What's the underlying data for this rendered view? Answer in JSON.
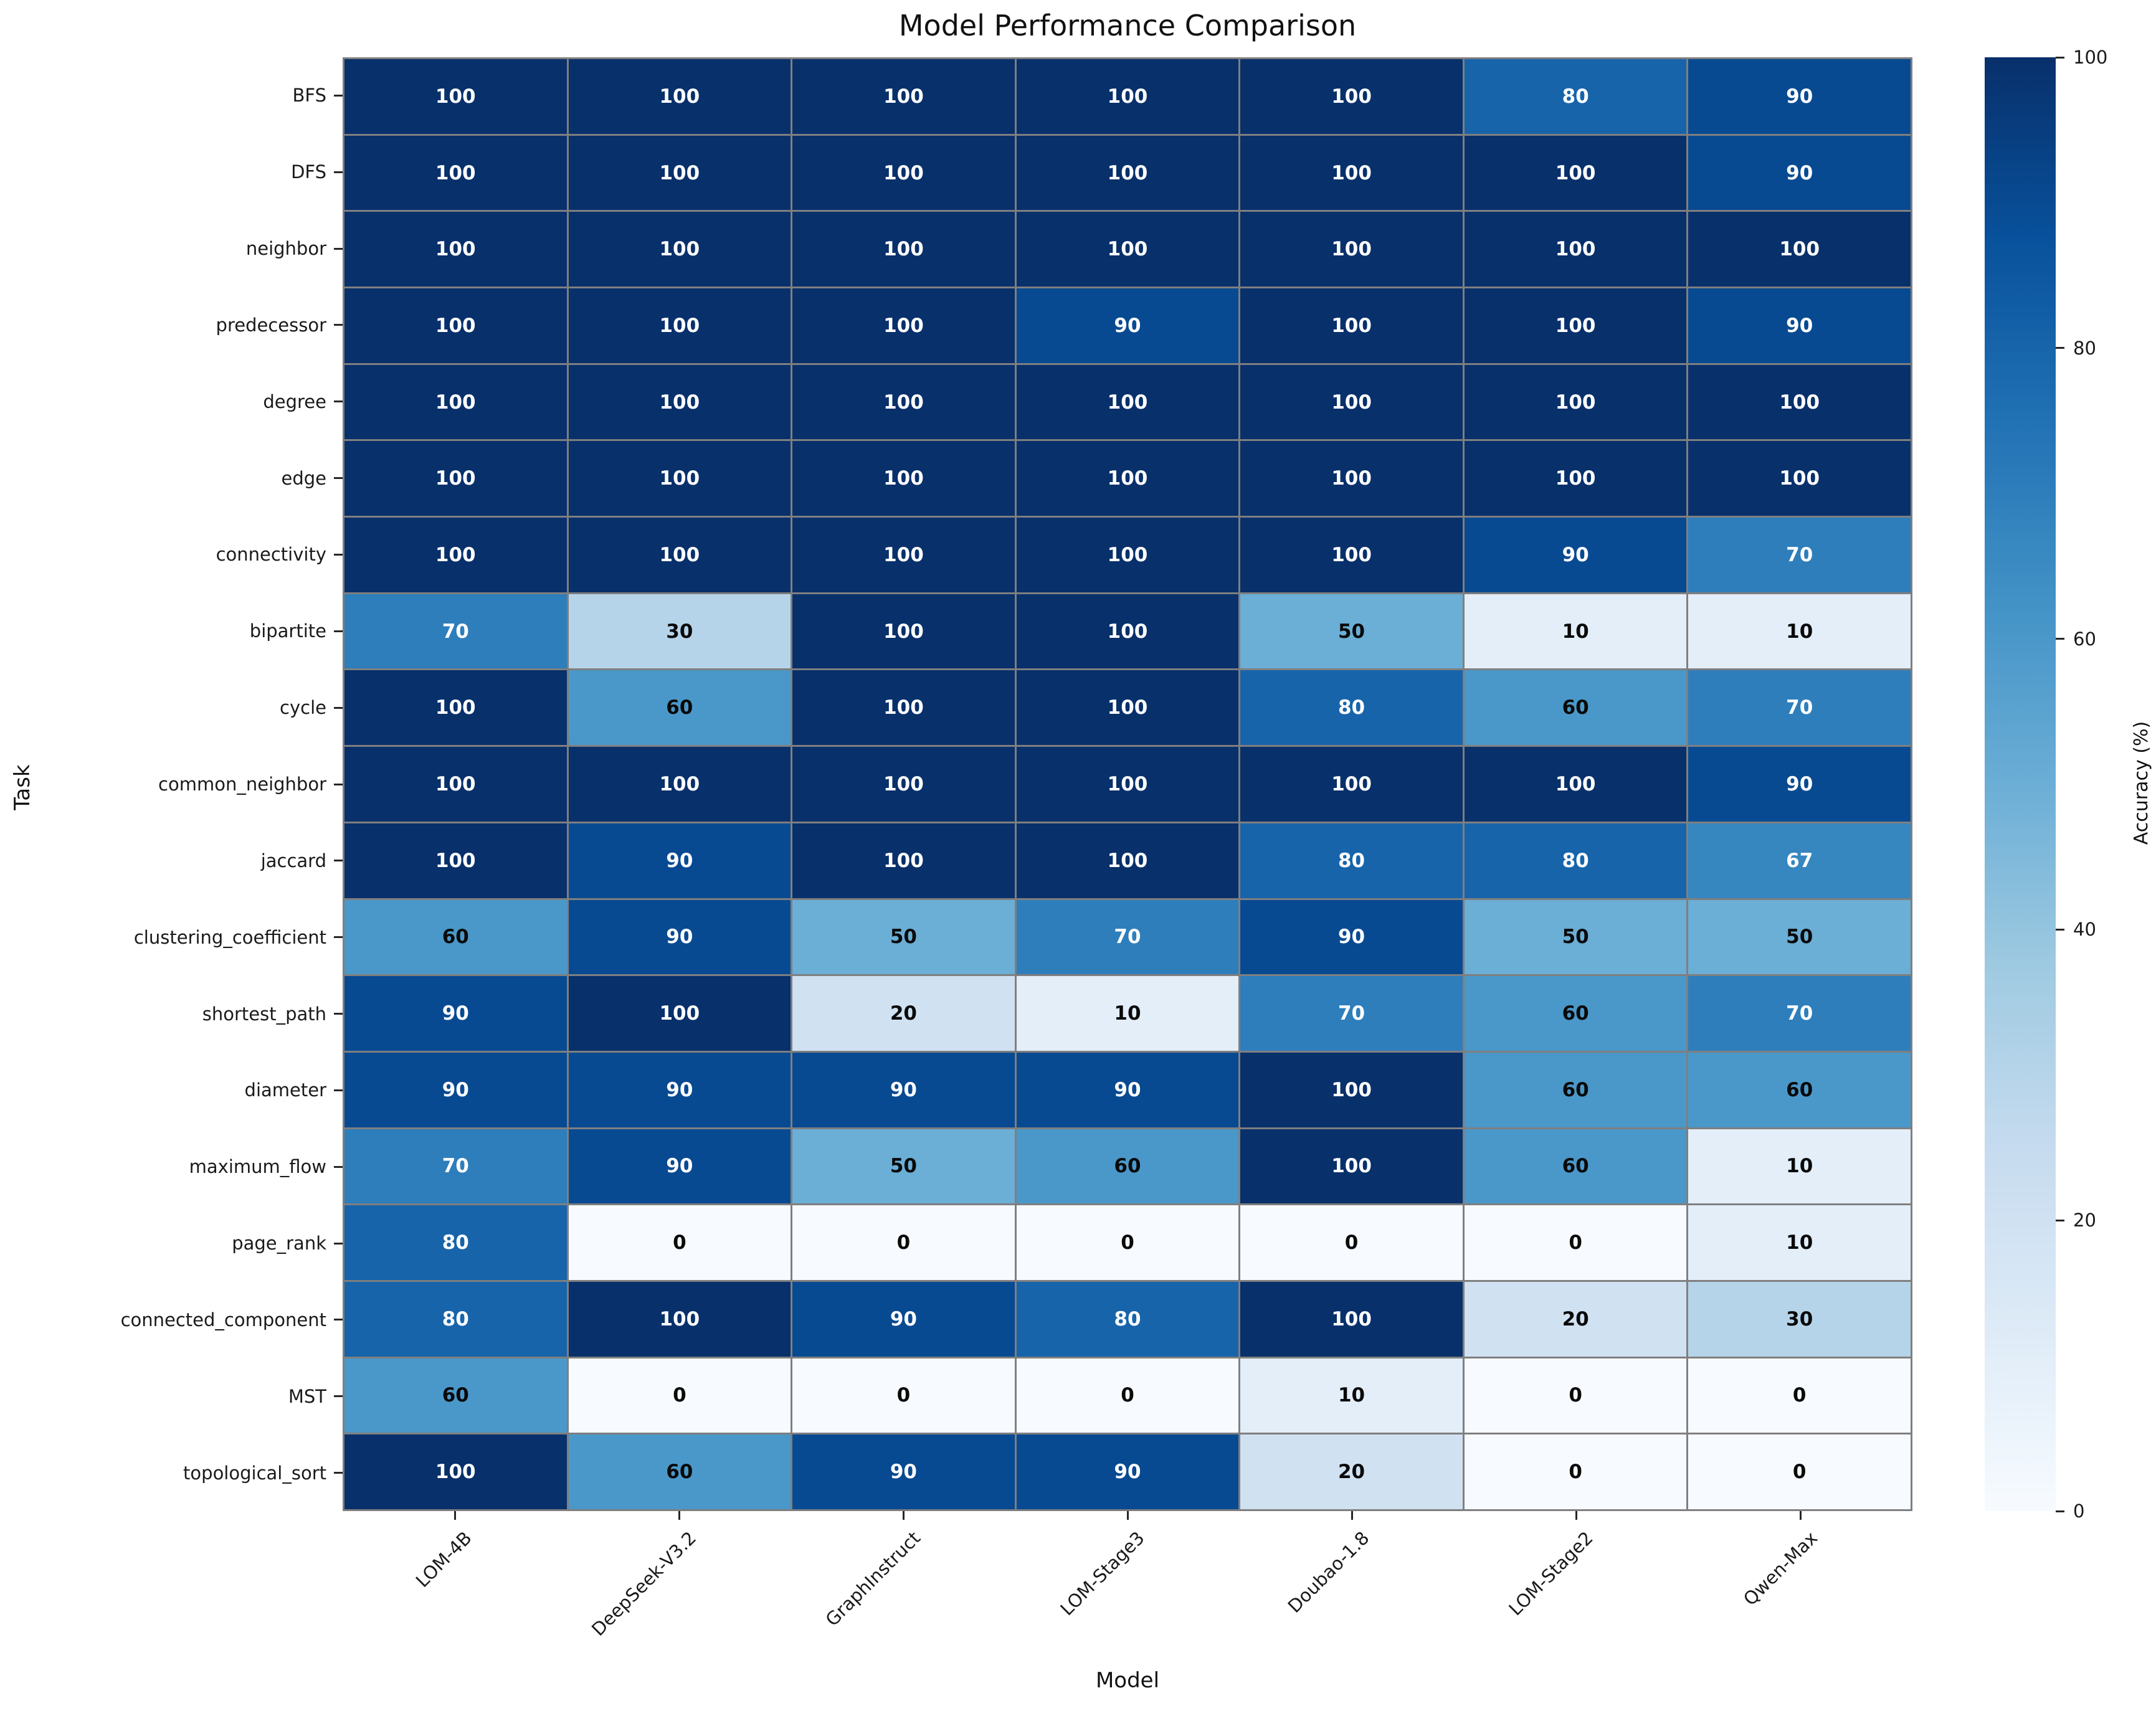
{
  "chart_data": {
    "type": "heatmap",
    "title": "Model Performance Comparison",
    "xlabel": "Model",
    "ylabel": "Task",
    "x_categories": [
      "LOM-4B",
      "DeepSeek-V3.2",
      "GraphInstruct",
      "LOM-Stage3",
      "Doubao-1.8",
      "LOM-Stage2",
      "Qwen-Max"
    ],
    "y_categories": [
      "BFS",
      "DFS",
      "neighbor",
      "predecessor",
      "degree",
      "edge",
      "connectivity",
      "bipartite",
      "cycle",
      "common_neighbor",
      "jaccard",
      "clustering_coefficient",
      "shortest_path",
      "diameter",
      "maximum_flow",
      "page_rank",
      "connected_component",
      "MST",
      "topological_sort"
    ],
    "values": [
      [
        100,
        100,
        100,
        100,
        100,
        80,
        90
      ],
      [
        100,
        100,
        100,
        100,
        100,
        100,
        90
      ],
      [
        100,
        100,
        100,
        100,
        100,
        100,
        100
      ],
      [
        100,
        100,
        100,
        90,
        100,
        100,
        90
      ],
      [
        100,
        100,
        100,
        100,
        100,
        100,
        100
      ],
      [
        100,
        100,
        100,
        100,
        100,
        100,
        100
      ],
      [
        100,
        100,
        100,
        100,
        100,
        90,
        70
      ],
      [
        70,
        30,
        100,
        100,
        50,
        10,
        10
      ],
      [
        100,
        60,
        100,
        100,
        80,
        60,
        70
      ],
      [
        100,
        100,
        100,
        100,
        100,
        100,
        90
      ],
      [
        100,
        90,
        100,
        100,
        80,
        80,
        67
      ],
      [
        60,
        90,
        50,
        70,
        90,
        50,
        50
      ],
      [
        90,
        100,
        20,
        10,
        70,
        60,
        70
      ],
      [
        90,
        90,
        90,
        90,
        100,
        60,
        60
      ],
      [
        70,
        90,
        50,
        60,
        100,
        60,
        10
      ],
      [
        80,
        0,
        0,
        0,
        0,
        0,
        10
      ],
      [
        80,
        100,
        90,
        80,
        100,
        20,
        30
      ],
      [
        60,
        0,
        0,
        0,
        10,
        0,
        0
      ],
      [
        100,
        60,
        90,
        90,
        20,
        0,
        0
      ]
    ],
    "value_range": [
      0,
      100
    ],
    "grid": true,
    "grid_color": "#7f7f7f",
    "colormap": "Blues",
    "colormap_anchors": [
      {
        "pos": 0.0,
        "color": "#f7fbff"
      },
      {
        "pos": 0.125,
        "color": "#deebf7"
      },
      {
        "pos": 0.25,
        "color": "#c6dbef"
      },
      {
        "pos": 0.375,
        "color": "#9ecae1"
      },
      {
        "pos": 0.5,
        "color": "#6baed6"
      },
      {
        "pos": 0.625,
        "color": "#4292c6"
      },
      {
        "pos": 0.75,
        "color": "#2171b5"
      },
      {
        "pos": 0.875,
        "color": "#08519c"
      },
      {
        "pos": 1.0,
        "color": "#08306b"
      }
    ],
    "annotation": {
      "white_text_min": 65,
      "white_text_color": "#ffffff",
      "dark_text_color": "#0a0a0a"
    },
    "colorbar": {
      "label": "Accuracy (%)",
      "ticks": [
        0,
        20,
        40,
        60,
        80,
        100
      ],
      "position": "right"
    }
  }
}
